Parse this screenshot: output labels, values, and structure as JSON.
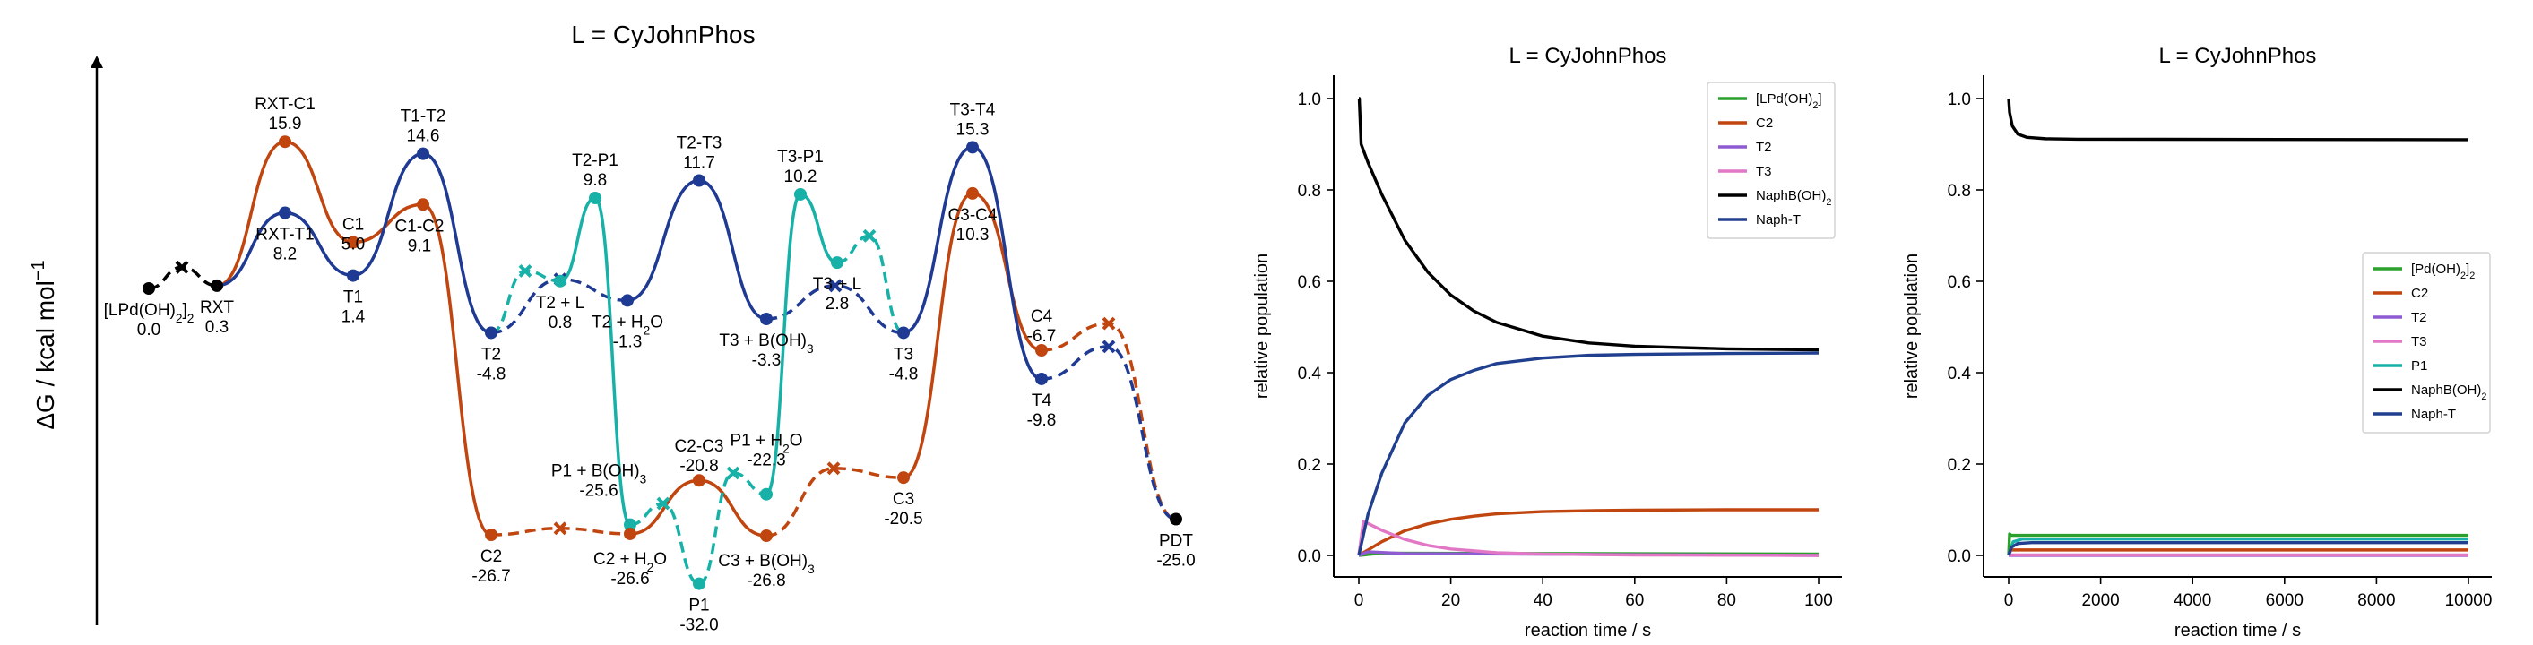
{
  "colors": {
    "black": "#000000",
    "orange": "#c0450f",
    "navy": "#1f3a93",
    "teal": "#17b1a8",
    "green": "#2ca02c",
    "purple": "#8e5bd2",
    "pink": "#e277c6",
    "navy_kin": "#203f8f"
  },
  "chart_data": [
    {
      "type": "line",
      "title": "L = CyJohnPhos",
      "ylabel": "ΔG / kcal mol",
      "ylabel_sup": "−1",
      "axes": "left-arrow-only",
      "species": [
        {
          "id": "lpd",
          "label": "[LPd(OH)",
          "sub": "2",
          "tail": "]",
          "tsub": "2",
          "value": "0.0",
          "color": "black"
        },
        {
          "id": "rxt",
          "label": "RXT",
          "value": "0.3",
          "color": "black"
        },
        {
          "id": "rxtc1",
          "label": "RXT-C1",
          "value": "15.9",
          "color": "orange"
        },
        {
          "id": "rxtt1",
          "label": "RXT-T1",
          "value": "8.2",
          "color": "navy"
        },
        {
          "id": "c1",
          "label": "C1",
          "value": "5.0",
          "color": "orange"
        },
        {
          "id": "t1",
          "label": "T1",
          "value": "1.4",
          "color": "navy"
        },
        {
          "id": "t1t2",
          "label": "T1-T2",
          "value": "14.6",
          "color": "navy"
        },
        {
          "id": "c1c2",
          "label": "C1-C2",
          "value": "9.1",
          "color": "orange"
        },
        {
          "id": "t2",
          "label": "T2",
          "value": "-4.8",
          "color": "navy"
        },
        {
          "id": "c2",
          "label": "C2",
          "value": "-26.7",
          "color": "orange"
        },
        {
          "id": "t2l",
          "label": "T2 + L",
          "value": "0.8",
          "color": "teal"
        },
        {
          "id": "t2p1",
          "label": "T2-P1",
          "value": "9.8",
          "color": "teal"
        },
        {
          "id": "t2h2o",
          "label": "T2 + H",
          "sub": "2",
          "tail": "O",
          "value": "-1.3",
          "color": "navy"
        },
        {
          "id": "p1boh",
          "label": "P1 + B(OH)",
          "sub": "3",
          "value": "-25.6",
          "color": "teal"
        },
        {
          "id": "c2h2o",
          "label": "C2 + H",
          "sub": "2",
          "tail": "O",
          "value": "-26.6",
          "color": "orange"
        },
        {
          "id": "t2t3",
          "label": "T2-T3",
          "value": "11.7",
          "color": "navy"
        },
        {
          "id": "c2c3",
          "label": "C2-C3",
          "value": "-20.8",
          "color": "orange"
        },
        {
          "id": "p1",
          "label": "P1",
          "value": "-32.0",
          "color": "teal"
        },
        {
          "id": "p1h2o",
          "label": "P1 + H",
          "sub": "2",
          "tail": "O",
          "value": "-22.3",
          "color": "teal"
        },
        {
          "id": "t3boh",
          "label": "T3 + B(OH)",
          "sub": "3",
          "value": "-3.3",
          "color": "navy"
        },
        {
          "id": "c3boh",
          "label": "C3 + B(OH)",
          "sub": "3",
          "value": "-26.8",
          "color": "orange"
        },
        {
          "id": "t3p1",
          "label": "T3-P1",
          "value": "10.2",
          "color": "teal"
        },
        {
          "id": "t3l",
          "label": "T3 + L",
          "value": "2.8",
          "color": "teal"
        },
        {
          "id": "t3",
          "label": "T3",
          "value": "-4.8",
          "color": "navy"
        },
        {
          "id": "t3t4",
          "label": "T3-T4",
          "value": "15.3",
          "color": "navy"
        },
        {
          "id": "c3c4",
          "label": "C3-C4",
          "value": "10.3",
          "color": "orange"
        },
        {
          "id": "c3",
          "label": "C3",
          "value": "-20.5",
          "color": "orange"
        },
        {
          "id": "c4",
          "label": "C4",
          "value": "-6.7",
          "color": "orange"
        },
        {
          "id": "t4",
          "label": "T4",
          "value": "-9.8",
          "color": "navy"
        },
        {
          "id": "pdt",
          "label": "PDT",
          "value": "-25.0",
          "color": "black"
        }
      ]
    },
    {
      "type": "line",
      "title": "L = CyJohnPhos",
      "xlabel": "reaction time / s",
      "ylabel": "relative population",
      "xlim": [
        0,
        100
      ],
      "ylim": [
        0,
        1.0
      ],
      "xticks": [
        "0",
        "20",
        "40",
        "60",
        "80",
        "100"
      ],
      "yticks": [
        "0.0",
        "0.2",
        "0.4",
        "0.6",
        "0.8",
        "1.0"
      ],
      "legend_position": "top-right",
      "series": [
        {
          "name": "[LPd(OH)",
          "sub": "2",
          "tail": "]",
          "color": "green",
          "x": [
            0,
            5,
            100
          ],
          "y": [
            0.0,
            0.005,
            0.003
          ]
        },
        {
          "name": "C2",
          "color": "orange",
          "x": [
            0,
            5,
            10,
            15,
            20,
            25,
            30,
            40,
            50,
            60,
            80,
            100
          ],
          "y": [
            0.0,
            0.03,
            0.054,
            0.069,
            0.079,
            0.086,
            0.091,
            0.096,
            0.098,
            0.099,
            0.1,
            0.1
          ]
        },
        {
          "name": "T2",
          "color": "purple",
          "x": [
            0,
            2,
            10,
            100
          ],
          "y": [
            0.0,
            0.008,
            0.004,
            0.0
          ]
        },
        {
          "name": "T3",
          "color": "pink",
          "x": [
            0,
            1,
            2,
            5,
            10,
            15,
            20,
            30,
            40,
            60,
            100
          ],
          "y": [
            0.0,
            0.075,
            0.07,
            0.055,
            0.035,
            0.022,
            0.014,
            0.006,
            0.003,
            0.001,
            0.0
          ]
        },
        {
          "name": "NaphB(OH)",
          "sub": "2",
          "color": "black",
          "x": [
            0,
            0.1,
            0.5,
            2,
            5,
            10,
            15,
            20,
            25,
            30,
            40,
            50,
            60,
            80,
            100
          ],
          "y": [
            1.0,
            1.0,
            0.9,
            0.86,
            0.79,
            0.69,
            0.62,
            0.57,
            0.535,
            0.51,
            0.48,
            0.465,
            0.458,
            0.452,
            0.45
          ]
        },
        {
          "name": "Naph-T",
          "color": "navy_kin",
          "x": [
            0,
            2,
            5,
            10,
            15,
            20,
            25,
            30,
            40,
            50,
            60,
            80,
            100
          ],
          "y": [
            0.0,
            0.09,
            0.18,
            0.29,
            0.35,
            0.385,
            0.405,
            0.42,
            0.432,
            0.438,
            0.44,
            0.442,
            0.443
          ]
        }
      ]
    },
    {
      "type": "line",
      "title": "L = CyJohnPhos",
      "xlabel": "reaction time / s",
      "ylabel": "relative population",
      "xlim": [
        0,
        10000
      ],
      "ylim": [
        0,
        1.0
      ],
      "xticks": [
        "0",
        "2000",
        "4000",
        "6000",
        "8000",
        "10000"
      ],
      "yticks": [
        "0.0",
        "0.2",
        "0.4",
        "0.6",
        "0.8",
        "1.0"
      ],
      "legend_position": "center-right",
      "series": [
        {
          "name": "[Pd(OH)",
          "sub": "2",
          "tail": "]",
          "tsub": "2",
          "color": "green",
          "x": [
            0,
            20,
            60,
            10000
          ],
          "y": [
            0.0,
            0.047,
            0.044,
            0.044
          ]
        },
        {
          "name": "C2",
          "color": "orange",
          "x": [
            0,
            50,
            10000
          ],
          "y": [
            0.0,
            0.012,
            0.012
          ]
        },
        {
          "name": "T2",
          "color": "purple",
          "x": [
            0,
            10000
          ],
          "y": [
            0.0,
            0.0
          ]
        },
        {
          "name": "T3",
          "color": "pink",
          "x": [
            0,
            10000
          ],
          "y": [
            0.001,
            0.001
          ]
        },
        {
          "name": "P1",
          "color": "teal",
          "x": [
            0,
            100,
            300,
            10000
          ],
          "y": [
            0.0,
            0.03,
            0.036,
            0.036
          ]
        },
        {
          "name": "NaphB(OH)",
          "sub": "2",
          "color": "black",
          "x": [
            0,
            20,
            80,
            200,
            400,
            800,
            1500,
            10000
          ],
          "y": [
            1.0,
            0.97,
            0.94,
            0.922,
            0.915,
            0.912,
            0.911,
            0.91
          ]
        },
        {
          "name": "Naph-T",
          "color": "navy_kin",
          "x": [
            0,
            60,
            200,
            500,
            10000
          ],
          "y": [
            0.0,
            0.018,
            0.026,
            0.028,
            0.028
          ]
        }
      ]
    }
  ]
}
